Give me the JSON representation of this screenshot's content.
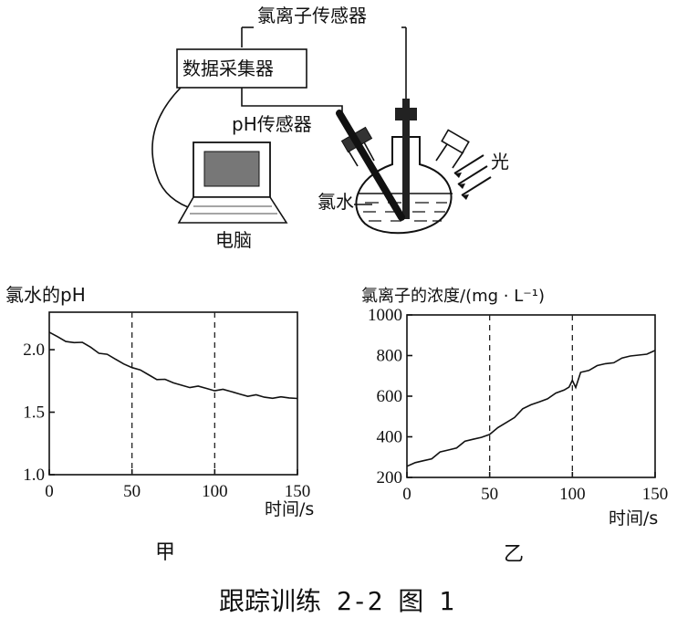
{
  "figure_title": "跟踪训练 2-2 图 1",
  "apparatus": {
    "chloride_sensor_label": "氯离子传感器",
    "data_collector_label": "数据采集器",
    "ph_sensor_label": "pH传感器",
    "computer_label": "电脑",
    "chlorine_water_label": "氯水",
    "light_label": "光"
  },
  "chart_data": [
    {
      "type": "line",
      "caption": "甲",
      "ylabel": "氯水的pH",
      "xlabel": "时间/s",
      "xlim": [
        0,
        150
      ],
      "ylim": [
        1.0,
        2.3
      ],
      "x_ticks": [
        0,
        50,
        100,
        150
      ],
      "x_tick_labels": [
        "0",
        "50",
        "100",
        "150"
      ],
      "y_ticks": [
        1.0,
        1.5,
        2.0
      ],
      "y_tick_labels": [
        "1.0",
        "1.5",
        "2.0"
      ],
      "dashed_verticals_x": [
        50,
        100
      ],
      "grid": false,
      "series": [
        {
          "x": [
            0,
            5,
            10,
            15,
            20,
            25,
            30,
            35,
            40,
            45,
            50,
            55,
            60,
            65,
            70,
            75,
            80,
            85,
            90,
            95,
            100,
            105,
            110,
            115,
            120,
            125,
            130,
            135,
            140,
            145,
            150
          ],
          "y": [
            2.14,
            2.1,
            2.07,
            2.07,
            2.05,
            2.02,
            1.98,
            1.95,
            1.92,
            1.89,
            1.87,
            1.83,
            1.8,
            1.77,
            1.75,
            1.73,
            1.72,
            1.71,
            1.7,
            1.69,
            1.68,
            1.67,
            1.66,
            1.65,
            1.64,
            1.63,
            1.62,
            1.62,
            1.61,
            1.61,
            1.61
          ]
        }
      ]
    },
    {
      "type": "line",
      "caption": "乙",
      "ylabel": "氯离子的浓度/(mg · L⁻¹)",
      "xlabel": "时间/s",
      "xlim": [
        0,
        150
      ],
      "ylim": [
        200,
        1000
      ],
      "x_ticks": [
        0,
        50,
        100,
        150
      ],
      "x_tick_labels": [
        "0",
        "50",
        "100",
        "150"
      ],
      "y_ticks": [
        200,
        400,
        600,
        800,
        1000
      ],
      "y_tick_labels": [
        "200",
        "400",
        "600",
        "800",
        "1000"
      ],
      "dashed_verticals_x": [
        50,
        100
      ],
      "grid": false,
      "series": [
        {
          "x": [
            0,
            5,
            10,
            15,
            20,
            25,
            30,
            35,
            40,
            45,
            50,
            55,
            60,
            65,
            70,
            75,
            80,
            85,
            90,
            95,
            98,
            100,
            102,
            105,
            110,
            115,
            120,
            125,
            130,
            135,
            140,
            145,
            150
          ],
          "y": [
            255,
            270,
            285,
            300,
            320,
            335,
            350,
            370,
            385,
            400,
            420,
            440,
            470,
            500,
            530,
            555,
            575,
            595,
            610,
            630,
            650,
            670,
            640,
            720,
            735,
            745,
            760,
            770,
            780,
            795,
            805,
            815,
            825
          ]
        }
      ]
    }
  ]
}
